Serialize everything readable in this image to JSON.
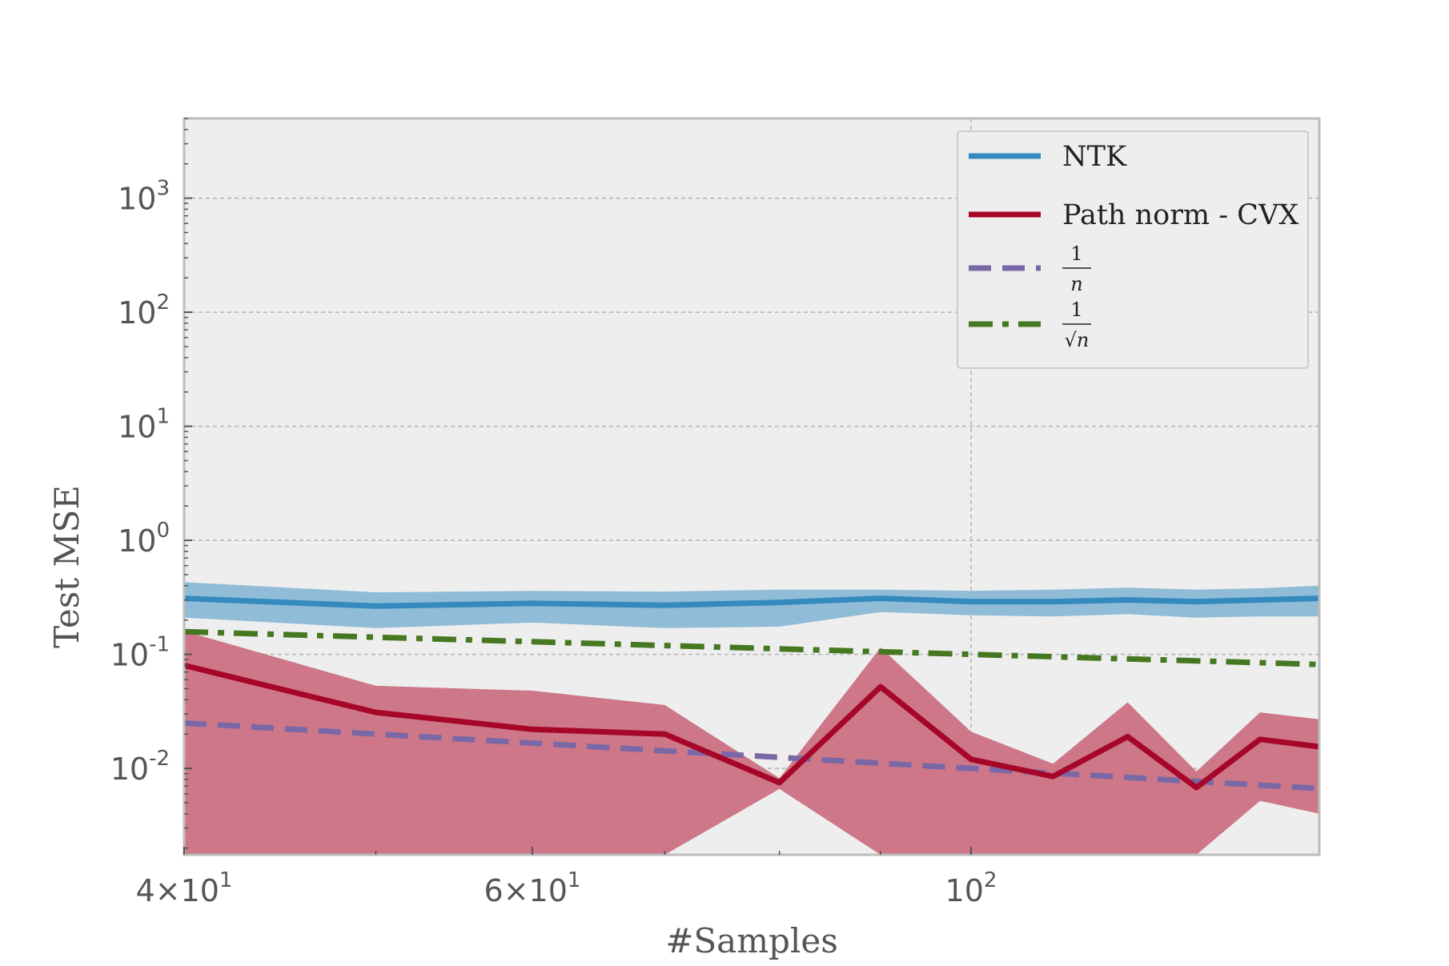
{
  "chart_data": {
    "type": "line",
    "title": "",
    "xlabel": "#Samples",
    "ylabel": "Test MSE",
    "xscale": "log",
    "yscale": "log",
    "xlim": [
      40,
      150
    ],
    "ylim": [
      0.00175,
      5000
    ],
    "grid": true,
    "legend_position": "top-right",
    "x_ticks": [
      {
        "value": 40,
        "base": "4",
        "exp": "1"
      },
      {
        "value": 60,
        "base": "6",
        "exp": "1"
      },
      {
        "value": 100,
        "base": "",
        "exp": "2"
      }
    ],
    "y_ticks": [
      {
        "value": 0.01,
        "exp": "-2"
      },
      {
        "value": 0.1,
        "exp": "-1"
      },
      {
        "value": 1,
        "exp": "0"
      },
      {
        "value": 10,
        "exp": "1"
      },
      {
        "value": 100,
        "exp": "2"
      },
      {
        "value": 1000,
        "exp": "3"
      }
    ],
    "x": [
      40,
      50,
      60,
      70,
      80,
      90,
      100,
      110,
      120,
      130,
      140,
      150
    ],
    "series": [
      {
        "name": "NTK",
        "color": "#348abd",
        "style": "solid",
        "values": [
          0.31,
          0.265,
          0.28,
          0.27,
          0.285,
          0.31,
          0.29,
          0.29,
          0.3,
          0.29,
          0.3,
          0.31
        ],
        "band_upper": [
          0.43,
          0.35,
          0.36,
          0.355,
          0.37,
          0.37,
          0.36,
          0.37,
          0.385,
          0.37,
          0.38,
          0.4
        ],
        "band_lower": [
          0.21,
          0.17,
          0.19,
          0.17,
          0.175,
          0.235,
          0.22,
          0.215,
          0.225,
          0.21,
          0.215,
          0.215
        ]
      },
      {
        "name": "Path norm - CVX",
        "color": "#a60628",
        "style": "solid",
        "values": [
          0.08,
          0.031,
          0.022,
          0.02,
          0.0075,
          0.052,
          0.012,
          0.0085,
          0.019,
          0.0068,
          0.018,
          0.0155
        ],
        "band_upper": [
          0.16,
          0.053,
          0.048,
          0.036,
          0.0082,
          0.115,
          0.021,
          0.011,
          0.038,
          0.0094,
          0.031,
          0.027
        ],
        "band_lower": [
          0.0015,
          0.0015,
          0.0015,
          0.0015,
          0.0066,
          0.0015,
          0.0015,
          0.0015,
          0.0015,
          0.0015,
          0.0052,
          0.004
        ]
      },
      {
        "name": "1/n",
        "legend_num": "1",
        "legend_den": "n",
        "color": "#7a68a6",
        "style": "dashed",
        "values": [
          0.025,
          0.02,
          0.016667,
          0.014286,
          0.0125,
          0.011111,
          0.01,
          0.009091,
          0.008333,
          0.007692,
          0.007143,
          0.006667
        ]
      },
      {
        "name": "1/√n",
        "legend_num": "1",
        "legend_den": "√n",
        "color": "#467821",
        "style": "dashdot",
        "values": [
          0.158,
          0.1414,
          0.1291,
          0.1195,
          0.1118,
          0.1054,
          0.1,
          0.0953,
          0.0913,
          0.0877,
          0.0845,
          0.0816
        ]
      }
    ]
  }
}
